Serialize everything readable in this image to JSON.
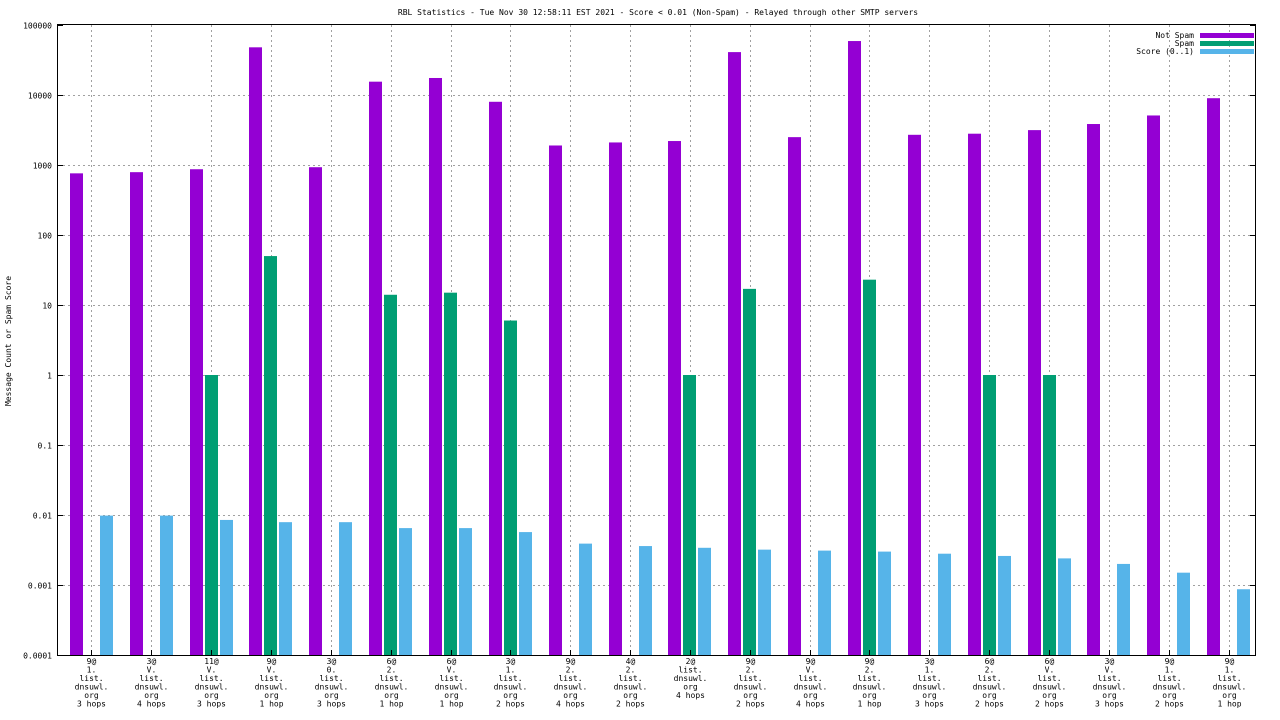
{
  "chart_data": {
    "type": "bar",
    "title": "RBL Statistics - Tue Nov 30 12:58:11 EST 2021 - Score < 0.01 (Non-Spam) - Relayed through other SMTP servers",
    "ylabel": "Message Count or Spam Score",
    "xlabel": "",
    "yscale": "log",
    "ylim": [
      0.0001,
      100000
    ],
    "yticks": [
      {
        "value": 100000,
        "label": "100000"
      },
      {
        "value": 10000,
        "label": "10000"
      },
      {
        "value": 1000,
        "label": "1000"
      },
      {
        "value": 100,
        "label": "100"
      },
      {
        "value": 10,
        "label": "10"
      },
      {
        "value": 1,
        "label": "1"
      },
      {
        "value": 0.1,
        "label": "0.1"
      },
      {
        "value": 0.01,
        "label": "0.01"
      },
      {
        "value": 0.001,
        "label": "0.001"
      },
      {
        "value": 0.0001,
        "label": "0.0001"
      }
    ],
    "grid": true,
    "legend_position": "top-right",
    "categories": [
      [
        "9@",
        "1.",
        "list.",
        "dnsuwl.",
        "org",
        "3 hops"
      ],
      [
        "3@",
        "V.",
        "list.",
        "dnsuwl.",
        "org",
        "4 hops"
      ],
      [
        "11@",
        "V.",
        "list.",
        "dnsuwl.",
        "org",
        "3 hops"
      ],
      [
        "9@",
        "V.",
        "list.",
        "dnsuwl.",
        "org",
        "1 hop"
      ],
      [
        "3@",
        "0.",
        "list.",
        "dnsuwl.",
        "org",
        "3 hops"
      ],
      [
        "6@",
        "2.",
        "list.",
        "dnsuwl.",
        "org",
        "1 hop"
      ],
      [
        "6@",
        "V.",
        "list.",
        "dnsuwl.",
        "org",
        "1 hop"
      ],
      [
        "3@",
        "1.",
        "list.",
        "dnsuwl.",
        "org",
        "2 hops"
      ],
      [
        "9@",
        "2.",
        "list.",
        "dnsuwl.",
        "org",
        "4 hops"
      ],
      [
        "4@",
        "2.",
        "list.",
        "dnsuwl.",
        "org",
        "2 hops"
      ],
      [
        "2@",
        "list.",
        "dnsuwl.",
        "org",
        "4 hops"
      ],
      [
        "9@",
        "2.",
        "list.",
        "dnsuwl.",
        "org",
        "2 hops"
      ],
      [
        "9@",
        "V.",
        "list.",
        "dnsuwl.",
        "org",
        "4 hops"
      ],
      [
        "9@",
        "2.",
        "list.",
        "dnsuwl.",
        "org",
        "1 hop"
      ],
      [
        "3@",
        "1.",
        "list.",
        "dnsuwl.",
        "org",
        "3 hops"
      ],
      [
        "6@",
        "2.",
        "list.",
        "dnsuwl.",
        "org",
        "2 hops"
      ],
      [
        "6@",
        "V.",
        "list.",
        "dnsuwl.",
        "org",
        "2 hops"
      ],
      [
        "3@",
        "V.",
        "list.",
        "dnsuwl.",
        "org",
        "3 hops"
      ],
      [
        "9@",
        "1.",
        "list.",
        "dnsuwl.",
        "org",
        "2 hops"
      ],
      [
        "9@",
        "1.",
        "list.",
        "dnsuwl.",
        "org",
        "1 hop"
      ]
    ],
    "series": [
      {
        "name": "Not Spam",
        "color": "#9400d3",
        "values": [
          760,
          790,
          870,
          48000,
          930,
          15500,
          17500,
          8000,
          1900,
          2100,
          2200,
          41000,
          2500,
          59000,
          2700,
          2800,
          3150,
          3850,
          5100,
          9000
        ]
      },
      {
        "name": "Spam",
        "color": "#009e73",
        "values": [
          null,
          null,
          1,
          50,
          null,
          14,
          15,
          6,
          null,
          null,
          1,
          17,
          null,
          23,
          null,
          1,
          1,
          null,
          null,
          null
        ]
      },
      {
        "name": "Score (0..1)",
        "color": "#56b4e9",
        "values": [
          0.0098,
          0.0098,
          0.0085,
          0.0079,
          0.0079,
          0.0065,
          0.0065,
          0.0057,
          0.0039,
          0.0036,
          0.0034,
          0.0032,
          0.0031,
          0.003,
          0.0028,
          0.0026,
          0.0024,
          0.002,
          0.0015,
          0.00087
        ]
      }
    ]
  }
}
